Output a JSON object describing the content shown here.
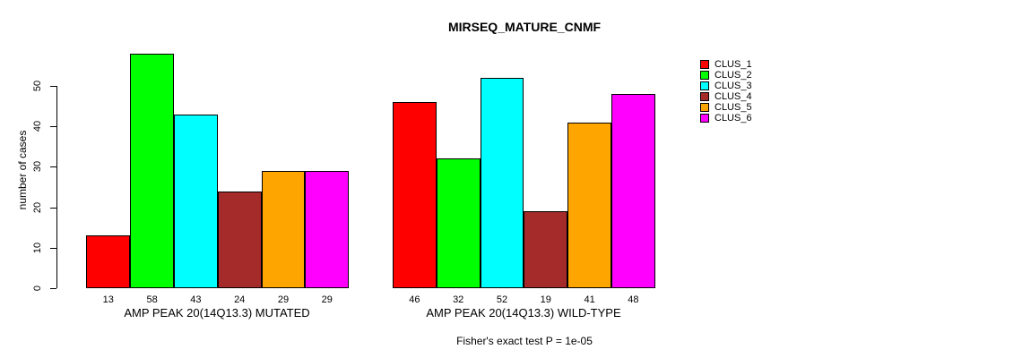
{
  "title": "MIRSEQ_MATURE_CNMF",
  "chart_data": {
    "type": "bar",
    "title": "MIRSEQ_MATURE_CNMF",
    "ylabel": "number of cases",
    "xlabel": "",
    "ylim": [
      0,
      58
    ],
    "yticks": [
      0,
      10,
      20,
      30,
      40,
      50
    ],
    "grid": false,
    "legend_position": "top-right",
    "bar_border_color": "#000000",
    "series": [
      {
        "name": "CLUS_1",
        "color": "#FF0000"
      },
      {
        "name": "CLUS_2",
        "color": "#00FF00"
      },
      {
        "name": "CLUS_3",
        "color": "#00FFFF"
      },
      {
        "name": "CLUS_4",
        "color": "#A52A2A"
      },
      {
        "name": "CLUS_5",
        "color": "#FFA500"
      },
      {
        "name": "CLUS_6",
        "color": "#FF00FF"
      }
    ],
    "groups": [
      {
        "label": "AMP PEAK 20(14Q13.3) MUTATED",
        "values": [
          13,
          58,
          43,
          24,
          29,
          29
        ]
      },
      {
        "label": "AMP PEAK 20(14Q13.3) WILD-TYPE",
        "values": [
          46,
          32,
          52,
          19,
          41,
          48
        ]
      }
    ],
    "annotation": "Fisher's exact test P = 1e-05"
  }
}
